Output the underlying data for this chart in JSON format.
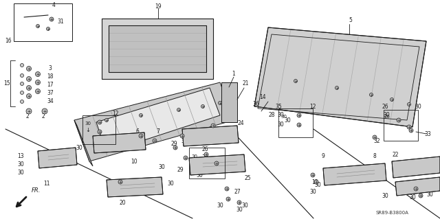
{
  "bg_color": "#ffffff",
  "dc": "#1a1a1a",
  "fig_width": 6.4,
  "fig_height": 3.19,
  "dpi": 100,
  "diagram_code": "SR89-B3800A"
}
